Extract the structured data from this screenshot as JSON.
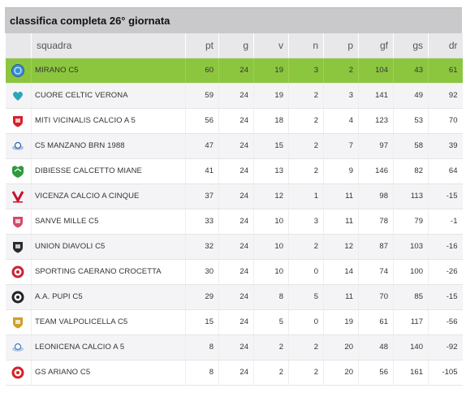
{
  "title": "classifica completa 26° giornata",
  "columns": {
    "squadra": "squadra",
    "pt": "pt",
    "g": "g",
    "v": "v",
    "n": "n",
    "p": "p",
    "gf": "gf",
    "gs": "gs",
    "dr": "dr"
  },
  "rows": [
    {
      "team": "MIRANO C5",
      "pt": "60",
      "g": "24",
      "v": "19",
      "n": "3",
      "p": "2",
      "gf": "104",
      "gs": "43",
      "dr": "61",
      "logo": "mirano-logo",
      "logo_color": "#3b8fd6"
    },
    {
      "team": "CUORE CELTIC VERONA",
      "pt": "59",
      "g": "24",
      "v": "19",
      "n": "2",
      "p": "3",
      "gf": "141",
      "gs": "49",
      "dr": "92",
      "logo": "heart-logo",
      "logo_color": "#2aa6b8"
    },
    {
      "team": "MITI VICINALIS CALCIO A 5",
      "pt": "56",
      "g": "24",
      "v": "18",
      "n": "2",
      "p": "4",
      "gf": "123",
      "gs": "53",
      "dr": "70",
      "logo": "shield-logo",
      "logo_color": "#d6202a"
    },
    {
      "team": "C5 MANZANO BRN 1988",
      "pt": "47",
      "g": "24",
      "v": "15",
      "n": "2",
      "p": "7",
      "gf": "97",
      "gs": "58",
      "dr": "39",
      "logo": "ball-logo",
      "logo_color": "#2b5fa8"
    },
    {
      "team": "DIBIESSE CALCETTO MIANE",
      "pt": "41",
      "g": "24",
      "v": "13",
      "n": "2",
      "p": "9",
      "gf": "146",
      "gs": "82",
      "dr": "64",
      "logo": "crest-logo",
      "logo_color": "#2e9a3c"
    },
    {
      "team": "VICENZA CALCIO A CINQUE",
      "pt": "37",
      "g": "24",
      "v": "12",
      "n": "1",
      "p": "11",
      "gf": "98",
      "gs": "113",
      "dr": "-15",
      "logo": "v-logo",
      "logo_color": "#c8102e"
    },
    {
      "team": "SANVE MILLE C5",
      "pt": "33",
      "g": "24",
      "v": "10",
      "n": "3",
      "p": "11",
      "gf": "78",
      "gs": "79",
      "dr": "-1",
      "logo": "shield-logo",
      "logo_color": "#d44a6a"
    },
    {
      "team": "UNION DIAVOLI C5",
      "pt": "32",
      "g": "24",
      "v": "10",
      "n": "2",
      "p": "12",
      "gf": "87",
      "gs": "103",
      "dr": "-16",
      "logo": "shield-logo",
      "logo_color": "#2a2a2a"
    },
    {
      "team": "SPORTING CAERANO CROCETTA",
      "pt": "30",
      "g": "24",
      "v": "10",
      "n": "0",
      "p": "14",
      "gf": "74",
      "gs": "100",
      "dr": "-26",
      "logo": "round-logo",
      "logo_color": "#cc2233"
    },
    {
      "team": "A.A. PUPI C5",
      "pt": "29",
      "g": "24",
      "v": "8",
      "n": "5",
      "p": "11",
      "gf": "70",
      "gs": "85",
      "dr": "-15",
      "logo": "round-logo",
      "logo_color": "#222222"
    },
    {
      "team": "TEAM VALPOLICELLA C5",
      "pt": "15",
      "g": "24",
      "v": "5",
      "n": "0",
      "p": "19",
      "gf": "61",
      "gs": "117",
      "dr": "-56",
      "logo": "shield-logo",
      "logo_color": "#c9a227"
    },
    {
      "team": "LEONICENA CALCIO A 5",
      "pt": "8",
      "g": "24",
      "v": "2",
      "n": "2",
      "p": "20",
      "gf": "48",
      "gs": "140",
      "dr": "-92",
      "logo": "ball-logo",
      "logo_color": "#3a7fc4"
    },
    {
      "team": "GS ARIANO C5",
      "pt": "8",
      "g": "24",
      "v": "2",
      "n": "2",
      "p": "20",
      "gf": "56",
      "gs": "161",
      "dr": "-105",
      "logo": "round-logo",
      "logo_color": "#d6202a"
    }
  ]
}
